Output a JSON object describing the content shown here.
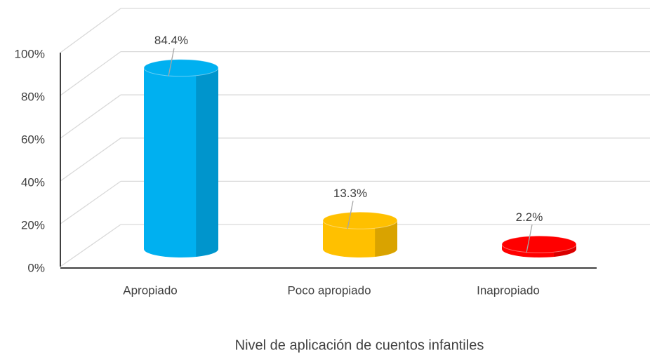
{
  "chart_data": {
    "type": "bar3d",
    "x_label": "Nivel de aplicación de cuentos infantiles",
    "categories": [
      "Apropiado",
      "Poco apropiado",
      "Inapropiado"
    ],
    "values": [
      84.4,
      13.3,
      2.2
    ],
    "value_labels": [
      "84.4%",
      "13.3%",
      "2.2%"
    ],
    "colors": [
      "#00b0f0",
      "#ffc000",
      "#ff0000"
    ],
    "ylim": [
      0,
      100
    ],
    "yticks": [
      {
        "value": 0,
        "label": "0%"
      },
      {
        "value": 20,
        "label": "20%"
      },
      {
        "value": 40,
        "label": "40%"
      },
      {
        "value": 60,
        "label": "60%"
      },
      {
        "value": 80,
        "label": "80%"
      },
      {
        "value": 100,
        "label": "100%"
      }
    ],
    "grid": true
  }
}
